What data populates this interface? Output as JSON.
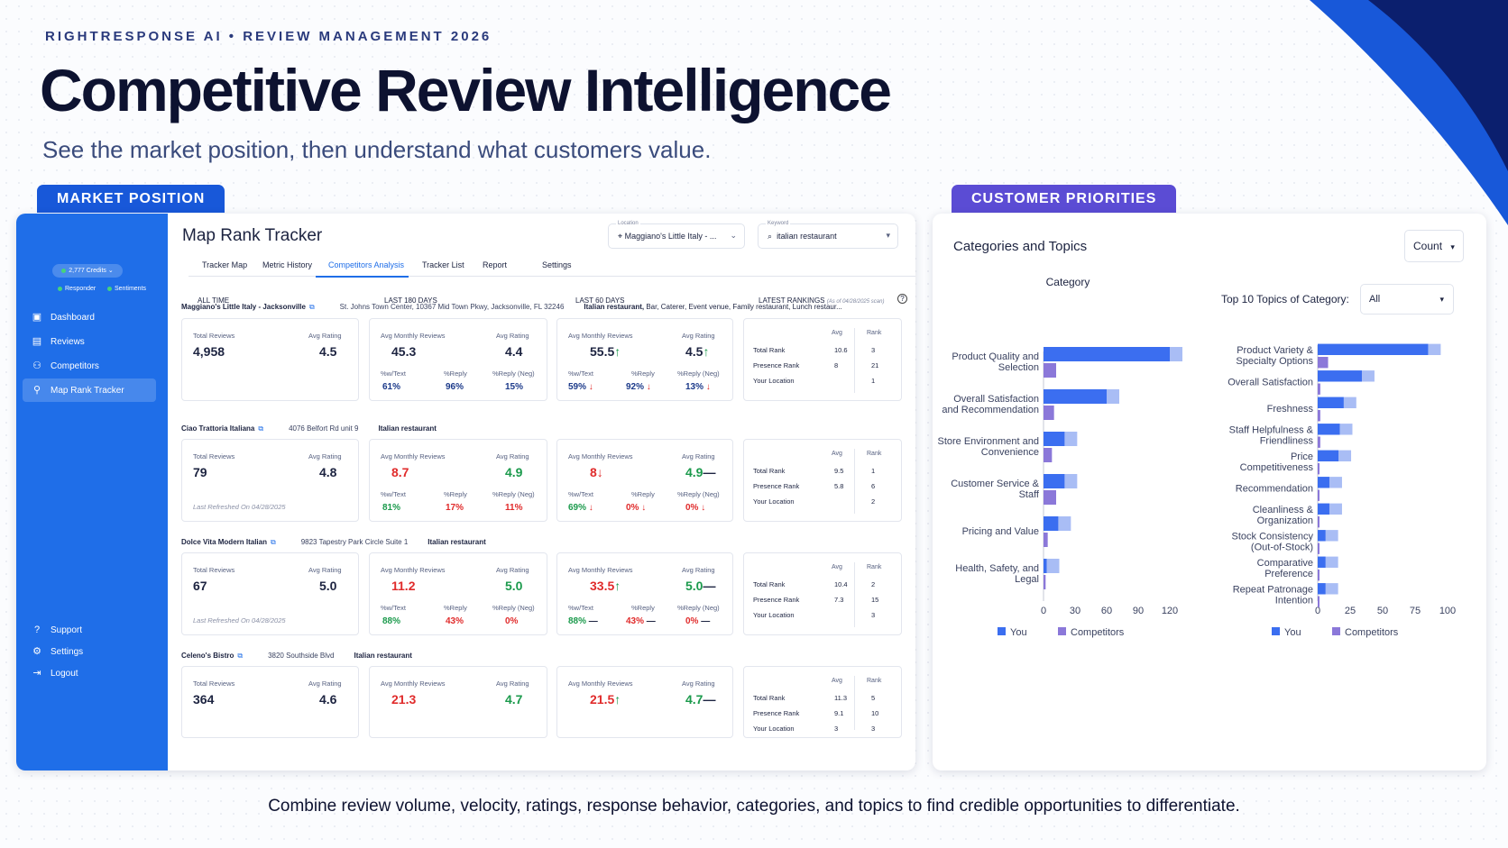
{
  "header": {
    "eyebrow": "RIGHTRESPONSE AI  •  REVIEW MANAGEMENT 2026",
    "title": "Competitive Review Intelligence",
    "subtitle": "See the market position, then understand what customers value."
  },
  "pills": {
    "market": "MARKET POSITION",
    "customer": "CUSTOMER PRIORITIES"
  },
  "sidebar": {
    "credits": "2,777 Credits",
    "responder": "Responder",
    "sentiments": "Sentiments",
    "items": [
      {
        "label": "Dashboard",
        "icon": "dashboard-icon"
      },
      {
        "label": "Reviews",
        "icon": "reviews-icon"
      },
      {
        "label": "Competitors",
        "icon": "competitors-icon"
      },
      {
        "label": "Map Rank Tracker",
        "icon": "map-rank-icon"
      }
    ],
    "bottom": [
      {
        "label": "Support",
        "icon": "support-icon"
      },
      {
        "label": "Settings",
        "icon": "settings-icon"
      },
      {
        "label": "Logout",
        "icon": "logout-icon"
      }
    ]
  },
  "main": {
    "title": "Map Rank Tracker",
    "location": {
      "label": "Location",
      "value": "Maggiano's Little Italy - ..."
    },
    "keyword": {
      "label": "Keyword",
      "value": "italian restaurant"
    },
    "tabs": [
      "Tracker Map",
      "Metric History",
      "Competitors Analysis",
      "Tracker List",
      "Report",
      "Settings"
    ],
    "columns": {
      "all_time": "ALL TIME",
      "d180": "LAST 180 DAYS",
      "d60": "LAST 60 DAYS",
      "latest": "LATEST RANKINGS",
      "as_of": "(As of 04/28/2025 scan)"
    },
    "labels": {
      "total_reviews": "Total Reviews",
      "avg_rating": "Avg Rating",
      "avg_monthly": "Avg Monthly Reviews",
      "w_text": "%w/Text",
      "reply": "%Reply",
      "reply_neg": "%Reply (Neg)",
      "avg": "Avg",
      "rank": "Rank",
      "total_rank": "Total Rank",
      "presence_rank": "Presence Rank",
      "your_location": "Your Location"
    },
    "competitors": [
      {
        "name": "Maggiano's Little Italy - Jacksonville",
        "address": "St. Johns Town Center, 10367 Mid Town Pkwy, Jacksonville, FL 32246",
        "keywords": "Italian restaurant, Bar, Caterer, Event venue, Family restaurant, Lunch restaur...",
        "total_reviews": "4,958",
        "avg_rating": "4.5",
        "refreshed": "",
        "d180": {
          "monthly": "45.3",
          "rating": "4.4",
          "text": "61%",
          "reply": "96%",
          "neg": "15%"
        },
        "d60": {
          "monthly": "55.5",
          "monthly_arrow": "↑",
          "rating": "4.5",
          "rating_arrow": "↑",
          "text": "59%",
          "text_arrow": "↓",
          "reply": "92%",
          "reply_arrow": "↓",
          "neg": "13%",
          "neg_arrow": "↓"
        },
        "rank": {
          "total_avg": "10.6",
          "total_rank": "3",
          "presence_avg": "8",
          "presence_rank": "21",
          "loc_avg": "",
          "loc_rank": "1"
        }
      },
      {
        "name": "Ciao Trattoria Italiana",
        "address": "4076 Belfort Rd unit 9",
        "keywords": "Italian restaurant",
        "total_reviews": "79",
        "avg_rating": "4.8",
        "refreshed": "Last Refreshed On 04/28/2025",
        "d180": {
          "monthly": "8.7",
          "rating": "4.9",
          "text": "81%",
          "reply": "17%",
          "neg": "11%"
        },
        "d60": {
          "monthly": "8",
          "monthly_arrow": "↓",
          "rating": "4.9",
          "rating_arrow": "—",
          "text": "69%",
          "text_arrow": "↓",
          "reply": "0%",
          "reply_arrow": "↓",
          "neg": "0%",
          "neg_arrow": "↓"
        },
        "rank": {
          "total_avg": "9.5",
          "total_rank": "1",
          "presence_avg": "5.8",
          "presence_rank": "6",
          "loc_avg": "",
          "loc_rank": "2"
        }
      },
      {
        "name": "Dolce Vita Modern Italian",
        "address": "9823 Tapestry Park Circle Suite 1",
        "keywords": "Italian restaurant",
        "total_reviews": "67",
        "avg_rating": "5.0",
        "refreshed": "Last Refreshed On 04/28/2025",
        "d180": {
          "monthly": "11.2",
          "rating": "5.0",
          "text": "88%",
          "reply": "43%",
          "neg": "0%"
        },
        "d60": {
          "monthly": "33.5",
          "monthly_arrow": "↑",
          "rating": "5.0",
          "rating_arrow": "—",
          "text": "88%",
          "text_arrow": "—",
          "reply": "43%",
          "reply_arrow": "—",
          "neg": "0%",
          "neg_arrow": "—"
        },
        "rank": {
          "total_avg": "10.4",
          "total_rank": "2",
          "presence_avg": "7.3",
          "presence_rank": "15",
          "loc_avg": "",
          "loc_rank": "3"
        }
      },
      {
        "name": "Celeno's Bistro",
        "address": "3820 Southside Blvd",
        "keywords": "Italian restaurant",
        "total_reviews": "364",
        "avg_rating": "4.6",
        "refreshed": "",
        "d180": {
          "monthly": "21.3",
          "rating": "4.7",
          "text": "",
          "reply": "",
          "neg": ""
        },
        "d60": {
          "monthly": "21.5",
          "monthly_arrow": "↑",
          "rating": "4.7",
          "rating_arrow": "—",
          "text": "",
          "text_arrow": "",
          "reply": "",
          "reply_arrow": "",
          "neg": "",
          "neg_arrow": ""
        },
        "rank": {
          "total_avg": "11.3",
          "total_rank": "5",
          "presence_avg": "9.1",
          "presence_rank": "10",
          "loc_avg": "3",
          "loc_rank": "3"
        }
      }
    ]
  },
  "right": {
    "title": "Categories and Topics",
    "count_select": "Count",
    "topic_label": "Top 10 Topics of Category:",
    "topic_select": "All"
  },
  "chart_data": [
    {
      "type": "bar",
      "orientation": "horizontal",
      "title": "Category",
      "categories": [
        "Product Quality and Selection",
        "Overall Satisfaction and Recommendation",
        "Store Environment and Convenience",
        "Customer Service & Staff",
        "Pricing and Value",
        "Health, Safety, and Legal"
      ],
      "series": [
        {
          "name": "You",
          "values": [
            120,
            60,
            20,
            20,
            14,
            3
          ]
        },
        {
          "name": "Competitors",
          "values": [
            12,
            10,
            8,
            12,
            4,
            2
          ]
        }
      ],
      "xlim": [
        0,
        120
      ],
      "xticks": [
        0,
        30,
        60,
        90,
        120
      ],
      "colors": {
        "You": "#3b6ef0",
        "Competitors": "#8b78d9"
      }
    },
    {
      "type": "bar",
      "orientation": "horizontal",
      "title": "Top 10 Topics of Category",
      "categories": [
        "Product Variety & Specialty Options",
        "Overall Satisfaction",
        "Freshness",
        "Staff Helpfulness & Friendliness",
        "Price Competitiveness",
        "Recommendation",
        "Cleanliness & Organization",
        "Stock Consistency (Out-of-Stock)",
        "Comparative Preference",
        "Repeat Patronage Intention"
      ],
      "series": [
        {
          "name": "You",
          "values": [
            85,
            34,
            20,
            17,
            16,
            9,
            9,
            6,
            6,
            6
          ]
        },
        {
          "name": "Competitors",
          "values": [
            8,
            2,
            2,
            2,
            1,
            1,
            1,
            1,
            1,
            1
          ]
        }
      ],
      "xlim": [
        0,
        100
      ],
      "xticks": [
        0,
        25,
        50,
        75,
        100
      ],
      "colors": {
        "You": "#3b6ef0",
        "Competitors": "#8b78d9"
      }
    }
  ],
  "footer": "Combine review volume, velocity, ratings, response behavior, categories, and topics to find credible opportunities to differentiate."
}
